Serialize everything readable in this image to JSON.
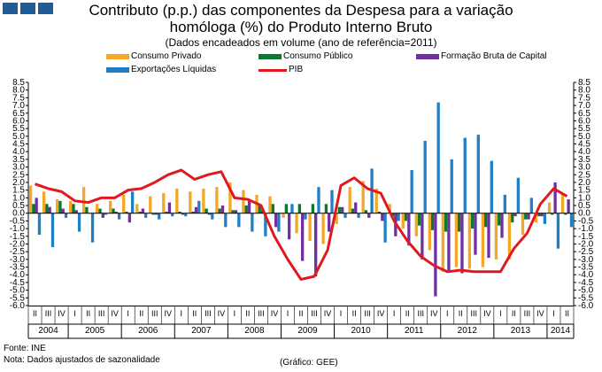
{
  "title_line1": "Contributo (p.p.) das componentes da Despesa para a variação",
  "title_line2": "homóloga (%) do Produto Interno Bruto",
  "subtitle": "(Dados encadeados em volume (ano de referência=2011)",
  "footer": {
    "source": "Fonte:  INE",
    "note": "Nota: Dados ajustados de sazonalidade",
    "credit": "(Gráfico: GEE)"
  },
  "colors": {
    "consumo_privado": "#f5a623",
    "consumo_publico": "#0a7a2a",
    "fbcf": "#7030a0",
    "exportacoes": "#1f7fc4",
    "pib": "#e0191f"
  },
  "chart_data": {
    "type": "bar",
    "ylim": [
      -6.0,
      8.5
    ],
    "y_ticks": [
      "8.5",
      "8.0",
      "7.5",
      "7.0",
      "6.5",
      "6.0",
      "5.5",
      "5.0",
      "4.5",
      "4.0",
      "3.5",
      "3.0",
      "2.5",
      "2.0",
      "1.5",
      "1.0",
      "0.5",
      "0.0",
      "-0.5",
      "-1.0",
      "-1.5",
      "-2.0",
      "-2.5",
      "-3.0",
      "-3.5",
      "-4.0",
      "-4.5",
      "-5.0",
      "-5.5",
      "-6.0"
    ],
    "grid": false,
    "legend_position": "top",
    "years": [
      "2004",
      "2005",
      "2006",
      "2007",
      "2008",
      "2009",
      "2010",
      "2011",
      "2012",
      "2013",
      "2014"
    ],
    "categories": [
      "II",
      "III",
      "IV",
      "I",
      "II",
      "III",
      "IV",
      "I",
      "II",
      "III",
      "IV",
      "I",
      "II",
      "III",
      "IV",
      "I",
      "II",
      "III",
      "IV",
      "I",
      "II",
      "III",
      "IV",
      "I",
      "II",
      "III",
      "IV",
      "I",
      "II",
      "III",
      "IV",
      "I",
      "II",
      "III",
      "IV",
      "I",
      "II",
      "III",
      "IV",
      "I",
      "II"
    ],
    "series": [
      {
        "name": "Consumo Privado",
        "type": "bar",
        "values": [
          1.8,
          1.4,
          0.9,
          0.8,
          1.7,
          0.6,
          0.8,
          1.2,
          0.6,
          1.1,
          1.3,
          1.6,
          1.4,
          1.6,
          1.7,
          2.0,
          1.5,
          1.2,
          1.1,
          -0.3,
          -1.3,
          -1.8,
          -2.0,
          -0.7,
          1.7,
          2.1,
          1.6,
          0.6,
          -1.0,
          -1.5,
          -2.4,
          -3.8,
          -3.5,
          -3.6,
          -3.5,
          -3.0,
          -3.0,
          -1.4,
          -0.6,
          0.7,
          1.3
        ]
      },
      {
        "name": "Consumo Público",
        "type": "bar",
        "values": [
          0.6,
          0.6,
          0.8,
          0.6,
          0.4,
          0.3,
          0.3,
          0.1,
          0.1,
          -0.1,
          0.1,
          0.1,
          0.1,
          0.3,
          0.3,
          0.2,
          0.5,
          0.5,
          0.6,
          0.6,
          0.6,
          0.6,
          0.6,
          0.4,
          0.3,
          0.2,
          0.1,
          -0.2,
          -0.5,
          -0.8,
          -1.1,
          -1.2,
          -1.2,
          -1.0,
          -0.9,
          -0.8,
          -0.6,
          -0.4,
          -0.2,
          -0.1,
          -0.1
        ]
      },
      {
        "name": "Formação Bruta de Capital",
        "type": "bar",
        "values": [
          1.0,
          0.4,
          0.3,
          0.2,
          0.0,
          -0.3,
          0.1,
          -0.6,
          0.3,
          -0.1,
          0.7,
          -0.1,
          0.4,
          -0.1,
          0.5,
          0.2,
          0.9,
          0.2,
          -0.9,
          -1.7,
          -3.1,
          -4.1,
          -1.2,
          0.4,
          0.7,
          -0.3,
          -0.5,
          -1.5,
          -2.1,
          -3.0,
          -5.4,
          -3.7,
          -3.9,
          -2.7,
          -2.9,
          -1.6,
          -0.2,
          -0.4,
          -0.2,
          2.0,
          0.9
        ]
      },
      {
        "name": "Exportações Líquidas",
        "type": "bar",
        "values": [
          -1.4,
          -2.2,
          -0.3,
          -1.2,
          -1.9,
          -0.1,
          -0.4,
          1.4,
          -0.3,
          -0.4,
          -0.2,
          -0.2,
          0.8,
          -0.4,
          -0.9,
          -0.9,
          -1.2,
          -1.5,
          -1.2,
          0.6,
          -0.4,
          1.7,
          1.5,
          -0.3,
          -0.3,
          2.9,
          -1.9,
          -0.5,
          2.8,
          4.7,
          7.2,
          3.5,
          4.9,
          5.1,
          3.4,
          1.2,
          2.3,
          1.0,
          -0.7,
          -2.3,
          -0.9
        ]
      },
      {
        "name": "PIB",
        "type": "line",
        "values": [
          1.9,
          1.6,
          1.4,
          0.8,
          0.7,
          1.0,
          1.0,
          1.5,
          1.6,
          2.0,
          2.5,
          2.8,
          2.2,
          2.5,
          2.7,
          1.0,
          0.9,
          0.5,
          -1.5,
          -3.0,
          -4.3,
          -4.1,
          -2.4,
          1.8,
          2.3,
          1.6,
          1.3,
          -0.5,
          -1.8,
          -2.8,
          -3.4,
          -3.8,
          -3.7,
          -3.8,
          -3.8,
          -3.8,
          -2.3,
          -1.3,
          0.6,
          1.6,
          1.1
        ]
      }
    ]
  }
}
